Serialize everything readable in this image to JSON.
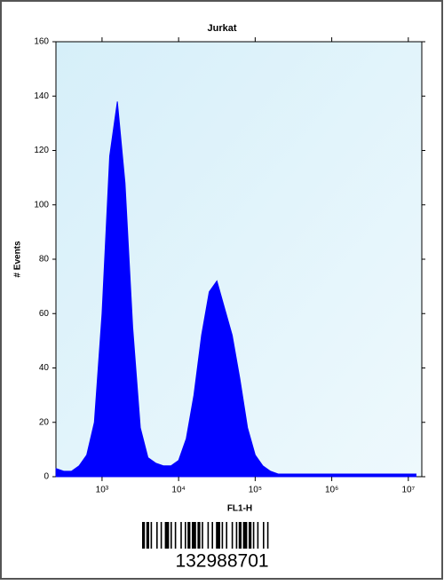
{
  "chart_data": {
    "type": "area",
    "title": "Jurkat",
    "xlabel": "FL1-H",
    "ylabel": "# Events",
    "x": [
      251,
      316,
      398,
      501,
      631,
      794,
      1000,
      1259,
      1585,
      1995,
      2512,
      3162,
      3981,
      5012,
      6310,
      7943,
      10000,
      12589,
      15849,
      19953,
      25119,
      31623,
      39811,
      50119,
      63096,
      79433,
      100000,
      125893,
      158489,
      199526,
      251189,
      316228,
      398107,
      501187,
      630957,
      794328,
      1000000,
      1258925,
      1584893,
      1995262,
      2511886,
      3162278,
      3981072,
      5011872,
      6309573,
      7943282,
      10000000,
      12589254
    ],
    "series": [
      {
        "color": "#0000ff",
        "values": [
          3,
          2,
          2,
          4,
          8,
          20,
          60,
          118,
          138,
          108,
          55,
          18,
          7,
          5,
          4,
          4,
          6,
          14,
          30,
          52,
          68,
          72,
          62,
          52,
          36,
          18,
          8,
          4,
          2,
          1,
          1,
          1,
          1,
          1,
          1,
          1,
          1,
          1,
          1,
          1,
          1,
          1,
          1,
          1,
          1,
          1,
          1,
          1
        ]
      }
    ],
    "xscale": "log",
    "xlim": [
      250,
      15000000
    ],
    "xticks": [
      {
        "value": 1000,
        "label": "10³"
      },
      {
        "value": 10000,
        "label": "10⁴"
      },
      {
        "value": 100000,
        "label": "10⁵"
      },
      {
        "value": 1000000,
        "label": "10⁶"
      },
      {
        "value": 10000000,
        "label": "10⁷"
      }
    ],
    "ylim": [
      0,
      160
    ],
    "yticks": [
      0,
      20,
      40,
      60,
      80,
      100,
      120,
      140,
      160
    ],
    "grid": false
  },
  "barcode_text": "132988701"
}
